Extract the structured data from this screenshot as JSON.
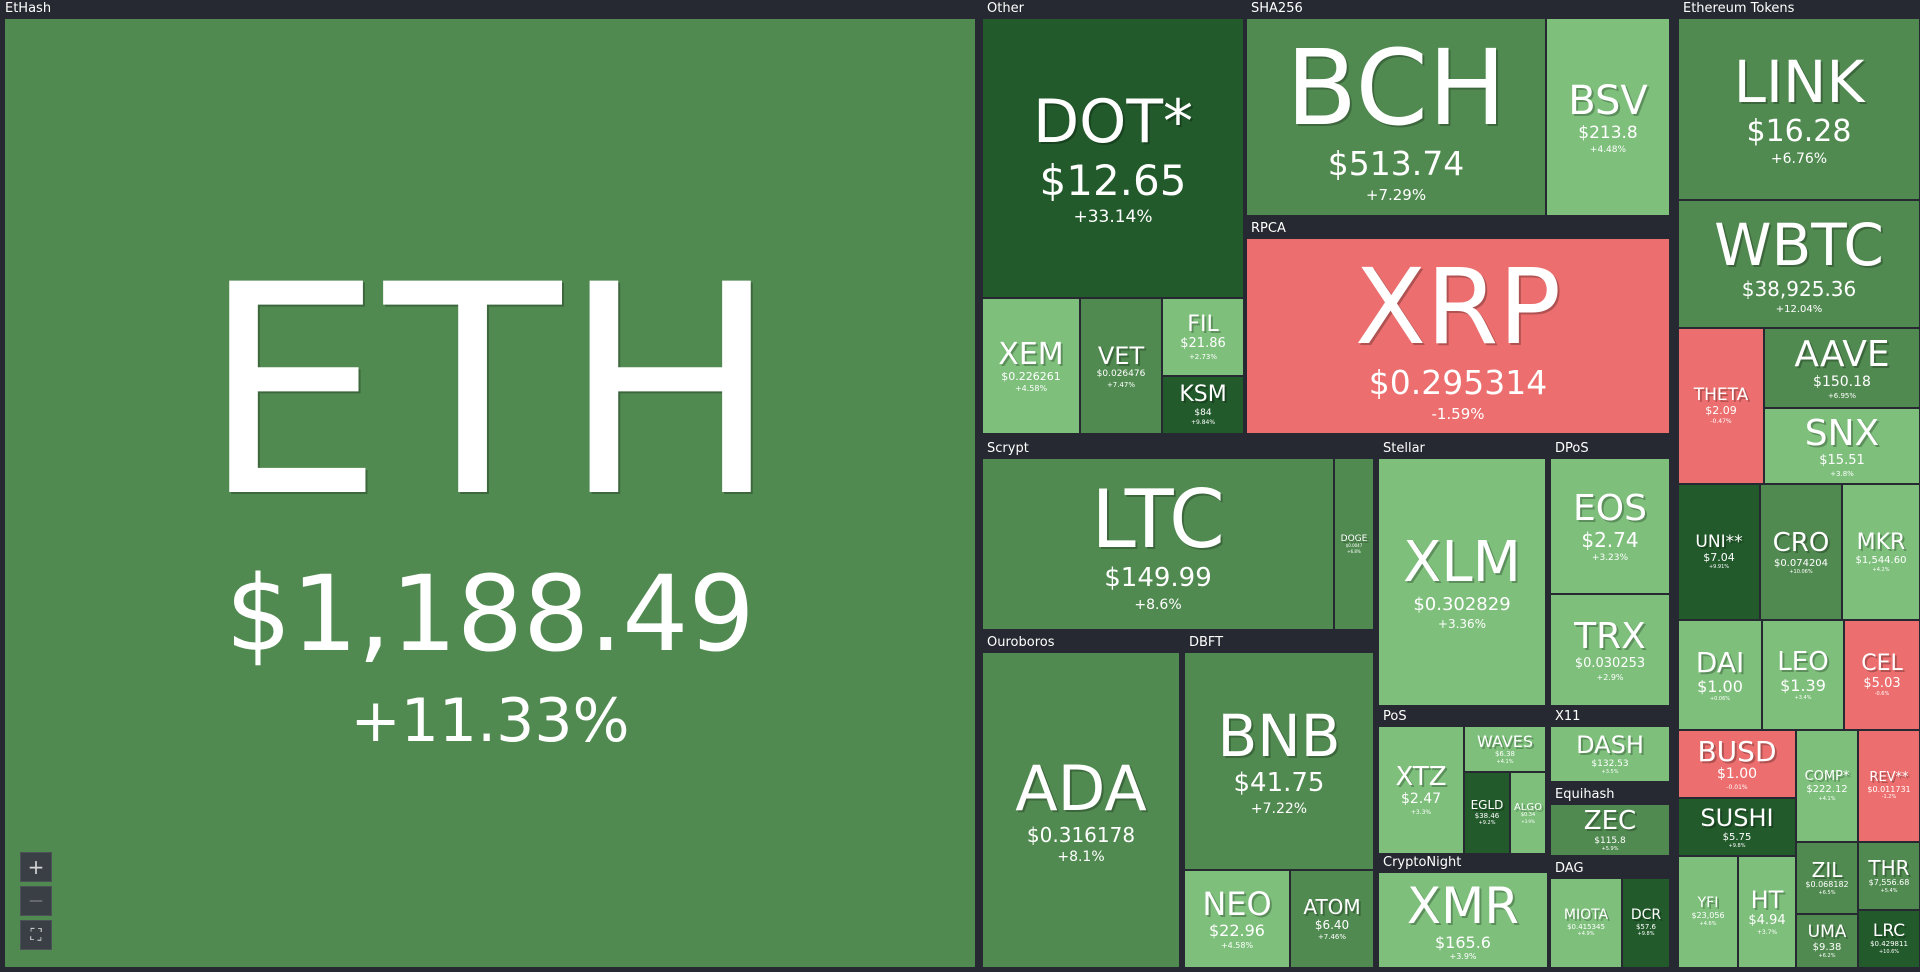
{
  "colors": {
    "strong_up": "#225a2b",
    "up": "#518a51",
    "light_up": "#7dbf7b",
    "down": "#ec6e6e",
    "background": "#262931"
  },
  "controls": {
    "zoom_in_icon": "plus-icon",
    "zoom_out_icon": "minus-icon",
    "fullscreen_icon": "fullscreen-icon",
    "zoom_in_glyph": "+",
    "zoom_out_glyph": "—",
    "fullscreen_glyph": "⛶"
  },
  "chart_data": {
    "type": "treemap",
    "title": "",
    "groups": [
      {
        "name": "EtHash",
        "items": [
          {
            "symbol": "ETH",
            "price": "$1,188.49",
            "change": "+11.33%",
            "change_pct": 11.33
          }
        ]
      },
      {
        "name": "Other",
        "items": [
          {
            "symbol": "DOT*",
            "price": "$12.65",
            "change": "+33.14%",
            "change_pct": 33.14
          },
          {
            "symbol": "XEM",
            "price": "$0.226261",
            "change": "+4.58%",
            "change_pct": 4.58
          },
          {
            "symbol": "VET",
            "price": "$0.026476",
            "change": "+7.47%",
            "change_pct": 7.47
          },
          {
            "symbol": "FIL",
            "price": "$21.86",
            "change": "+2.73%",
            "change_pct": 2.73
          },
          {
            "symbol": "KSM",
            "price": "$84",
            "change": "+9.84%",
            "change_pct": 9.84
          }
        ]
      },
      {
        "name": "SHA256",
        "items": [
          {
            "symbol": "BCH",
            "price": "$513.74",
            "change": "+7.29%",
            "change_pct": 7.29
          },
          {
            "symbol": "BSV",
            "price": "$213.8",
            "change": "+4.48%",
            "change_pct": 4.48
          }
        ]
      },
      {
        "name": "RPCA",
        "items": [
          {
            "symbol": "XRP",
            "price": "$0.295314",
            "change": "-1.59%",
            "change_pct": -1.59
          }
        ]
      },
      {
        "name": "Scrypt",
        "items": [
          {
            "symbol": "LTC",
            "price": "$149.99",
            "change": "+8.6%",
            "change_pct": 8.6
          },
          {
            "symbol": "DOGE",
            "price": "$0.0047",
            "change": "+6.8%",
            "change_pct": 6.8
          }
        ]
      },
      {
        "name": "Ouroboros",
        "items": [
          {
            "symbol": "ADA",
            "price": "$0.316178",
            "change": "+8.1%",
            "change_pct": 8.1
          }
        ]
      },
      {
        "name": "DBFT",
        "items": [
          {
            "symbol": "BNB",
            "price": "$41.75",
            "change": "+7.22%",
            "change_pct": 7.22
          },
          {
            "symbol": "NEO",
            "price": "$22.96",
            "change": "+4.58%",
            "change_pct": 4.58
          },
          {
            "symbol": "ATOM",
            "price": "$6.40",
            "change": "+7.46%",
            "change_pct": 7.46
          }
        ]
      },
      {
        "name": "Stellar",
        "items": [
          {
            "symbol": "XLM",
            "price": "$0.302829",
            "change": "+3.36%",
            "change_pct": 3.36
          }
        ]
      },
      {
        "name": "DPoS",
        "items": [
          {
            "symbol": "EOS",
            "price": "$2.74",
            "change": "+3.23%",
            "change_pct": 3.23
          },
          {
            "symbol": "TRX",
            "price": "$0.030253",
            "change": "+2.9%",
            "change_pct": 2.9
          }
        ]
      },
      {
        "name": "PoS",
        "items": [
          {
            "symbol": "XTZ",
            "price": "$2.47",
            "change": "+3.3%",
            "change_pct": 3.3
          },
          {
            "symbol": "WAVES",
            "price": "$6.38",
            "change": "+4.1%",
            "change_pct": 4.1
          },
          {
            "symbol": "EGLD",
            "price": "$38.46",
            "change": "+9.2%",
            "change_pct": 9.2
          },
          {
            "symbol": "ALGO",
            "price": "$0.34",
            "change": "+3.9%",
            "change_pct": 3.9
          }
        ]
      },
      {
        "name": "X11",
        "items": [
          {
            "symbol": "DASH",
            "price": "$132.53",
            "change": "+3.5%",
            "change_pct": 3.5
          }
        ]
      },
      {
        "name": "Equihash",
        "items": [
          {
            "symbol": "ZEC",
            "price": "$115.8",
            "change": "+5.9%",
            "change_pct": 5.9
          }
        ]
      },
      {
        "name": "CryptoNight",
        "items": [
          {
            "symbol": "XMR",
            "price": "$165.6",
            "change": "+3.9%",
            "change_pct": 3.9
          }
        ]
      },
      {
        "name": "DAG",
        "items": [
          {
            "symbol": "MIOTA",
            "price": "$0.415345",
            "change": "+4.9%",
            "change_pct": 4.9
          },
          {
            "symbol": "DCR",
            "price": "$57.6",
            "change": "+9.8%",
            "change_pct": 9.8
          }
        ]
      },
      {
        "name": "Ethereum Tokens",
        "items": [
          {
            "symbol": "LINK",
            "price": "$16.28",
            "change": "+6.76%",
            "change_pct": 6.76
          },
          {
            "symbol": "WBTC",
            "price": "$38,925.36",
            "change": "+12.04%",
            "change_pct": 12.04
          },
          {
            "symbol": "THETA",
            "price": "$2.09",
            "change": "-0.47%",
            "change_pct": -0.47
          },
          {
            "symbol": "AAVE",
            "price": "$150.18",
            "change": "+6.95%",
            "change_pct": 6.95
          },
          {
            "symbol": "SNX",
            "price": "$15.51",
            "change": "+3.8%",
            "change_pct": 3.8
          },
          {
            "symbol": "UNI**",
            "price": "$7.04",
            "change": "+9.91%",
            "change_pct": 9.91
          },
          {
            "symbol": "CRO",
            "price": "$0.074204",
            "change": "+10.06%",
            "change_pct": 10.06
          },
          {
            "symbol": "MKR",
            "price": "$1,544.60",
            "change": "+4.2%",
            "change_pct": 4.2
          },
          {
            "symbol": "DAI",
            "price": "$1.00",
            "change": "+0.06%",
            "change_pct": 0.06
          },
          {
            "symbol": "LEO",
            "price": "$1.39",
            "change": "+3.4%",
            "change_pct": 3.4
          },
          {
            "symbol": "CEL",
            "price": "$5.03",
            "change": "-0.6%",
            "change_pct": -0.6
          },
          {
            "symbol": "BUSD",
            "price": "$1.00",
            "change": "-0.01%",
            "change_pct": -0.01
          },
          {
            "symbol": "SUSHI",
            "price": "$5.75",
            "change": "+9.8%",
            "change_pct": 9.8
          },
          {
            "symbol": "COMP*",
            "price": "$222.12",
            "change": "+4.1%",
            "change_pct": 4.1
          },
          {
            "symbol": "REV**",
            "price": "$0.011731",
            "change": "-1.2%",
            "change_pct": -1.2
          },
          {
            "symbol": "YFI",
            "price": "$23,056",
            "change": "+4.6%",
            "change_pct": 4.6
          },
          {
            "symbol": "HT",
            "price": "$4.94",
            "change": "+3.7%",
            "change_pct": 3.7
          },
          {
            "symbol": "ZIL",
            "price": "$0.068182",
            "change": "+6.5%",
            "change_pct": 6.5
          },
          {
            "symbol": "THR",
            "price": "$7,556.68",
            "change": "+5.4%",
            "change_pct": 5.4
          },
          {
            "symbol": "UMA",
            "price": "$9.38",
            "change": "+6.2%",
            "change_pct": 6.2
          },
          {
            "symbol": "LRC",
            "price": "$0.429811",
            "change": "+10.6%",
            "change_pct": 10.6
          }
        ]
      }
    ]
  }
}
